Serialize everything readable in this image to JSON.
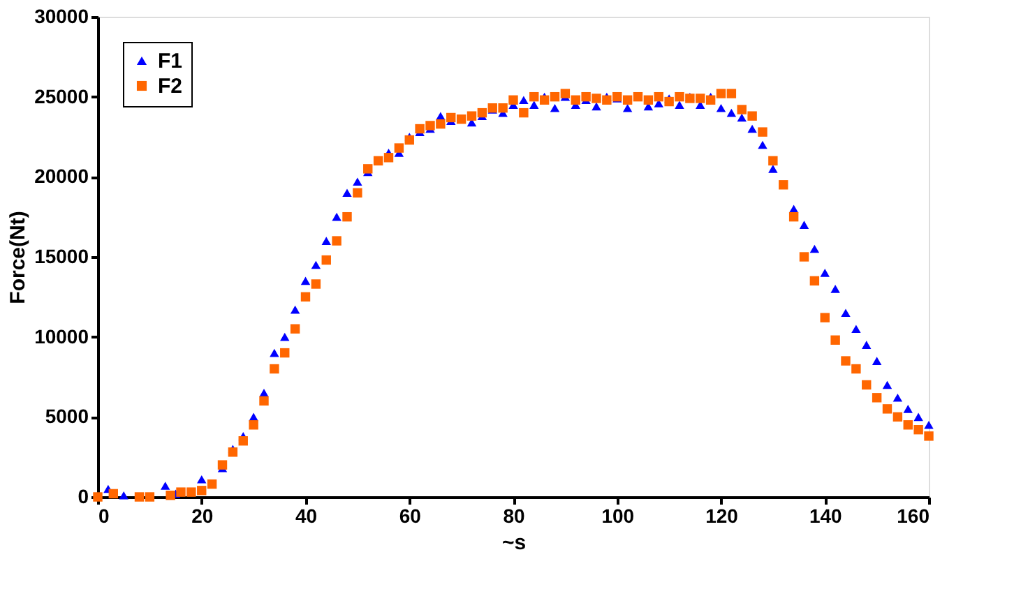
{
  "chart_data": {
    "type": "scatter",
    "xlabel": "~s",
    "ylabel": "Force(Nt)",
    "xlim": [
      0,
      160
    ],
    "ylim": [
      0,
      30000
    ],
    "xticks": [
      0,
      20,
      40,
      60,
      80,
      100,
      120,
      140,
      160
    ],
    "yticks": [
      0,
      5000,
      10000,
      15000,
      20000,
      25000,
      30000
    ],
    "grid": false,
    "legend": "top left",
    "series": [
      {
        "name": "F1",
        "color": "#0000ff",
        "marker": "triangle",
        "x": [
          2,
          5,
          13,
          15,
          20,
          24,
          26,
          28,
          30,
          32,
          34,
          36,
          38,
          40,
          42,
          44,
          46,
          48,
          50,
          52,
          56,
          58,
          60,
          62,
          64,
          66,
          68,
          72,
          74,
          76,
          78,
          80,
          82,
          84,
          86,
          88,
          90,
          92,
          94,
          96,
          98,
          100,
          102,
          106,
          108,
          110,
          112,
          114,
          116,
          118,
          120,
          122,
          124,
          126,
          128,
          130,
          134,
          136,
          138,
          140,
          142,
          144,
          146,
          148,
          150,
          152,
          154,
          156,
          158,
          160
        ],
        "values": [
          500,
          100,
          700,
          200,
          1100,
          1800,
          3000,
          3800,
          5000,
          6500,
          9000,
          10000,
          11700,
          13500,
          14500,
          16000,
          17500,
          19000,
          19700,
          20300,
          21500,
          21500,
          22500,
          22800,
          23000,
          23800,
          23500,
          23400,
          23800,
          24200,
          24000,
          24500,
          24800,
          24500,
          25000,
          24300,
          25000,
          24500,
          24800,
          24400,
          25000,
          24900,
          24300,
          24400,
          24600,
          24900,
          24500,
          25000,
          24500,
          25000,
          24300,
          24000,
          23700,
          23000,
          22000,
          20500,
          18000,
          17000,
          15500,
          14000,
          13000,
          11500,
          10500,
          9500,
          8500,
          7000,
          6200,
          5500,
          5000,
          4500
        ]
      },
      {
        "name": "F2",
        "color": "#ff6600",
        "marker": "square",
        "x": [
          0,
          3,
          8,
          10,
          14,
          16,
          18,
          20,
          22,
          24,
          26,
          28,
          30,
          32,
          34,
          36,
          38,
          40,
          42,
          44,
          46,
          48,
          50,
          52,
          54,
          56,
          58,
          60,
          62,
          64,
          66,
          68,
          70,
          72,
          74,
          76,
          78,
          80,
          82,
          84,
          86,
          88,
          90,
          92,
          94,
          96,
          98,
          100,
          102,
          104,
          106,
          108,
          110,
          112,
          114,
          116,
          118,
          120,
          122,
          124,
          126,
          128,
          130,
          132,
          134,
          136,
          138,
          140,
          142,
          144,
          146,
          148,
          150,
          152,
          154,
          156,
          158,
          160
        ],
        "values": [
          0,
          200,
          0,
          0,
          100,
          300,
          300,
          400,
          800,
          2000,
          2800,
          3500,
          4500,
          6000,
          8000,
          9000,
          10500,
          12500,
          13300,
          14800,
          16000,
          17500,
          19000,
          20500,
          21000,
          21200,
          21800,
          22300,
          23000,
          23200,
          23300,
          23700,
          23600,
          23800,
          24000,
          24300,
          24300,
          24800,
          24000,
          25000,
          24800,
          25000,
          25200,
          24800,
          25000,
          24900,
          24800,
          25000,
          24800,
          25000,
          24800,
          25000,
          24700,
          25000,
          24900,
          24900,
          24800,
          25200,
          25200,
          24200,
          23800,
          22800,
          21000,
          19500,
          17500,
          15000,
          13500,
          11200,
          9800,
          8500,
          8000,
          7000,
          6200,
          5500,
          5000,
          4500,
          4200,
          3800
        ]
      }
    ]
  }
}
